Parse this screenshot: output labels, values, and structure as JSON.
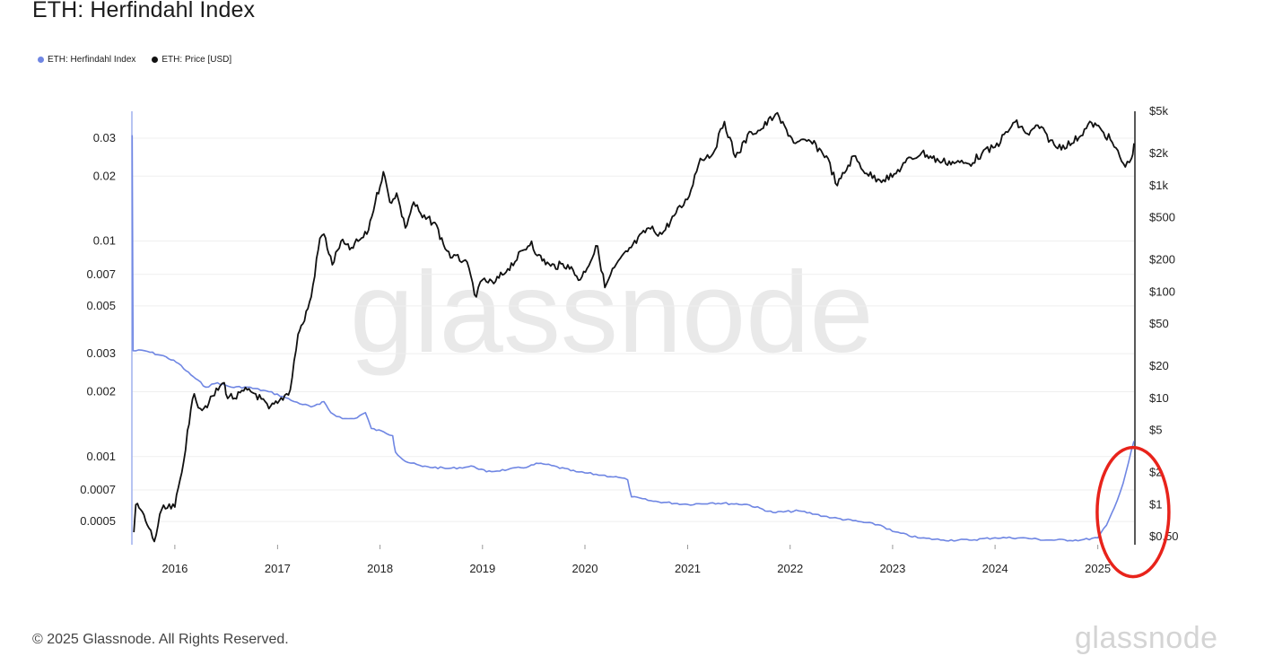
{
  "header": {
    "title": "ETH: Herfindahl Index"
  },
  "legend": [
    {
      "label": "ETH: Herfindahl Index",
      "color": "#6f86e3"
    },
    {
      "label": "ETH: Price [USD]",
      "color": "#111111"
    }
  ],
  "watermark": "glassnode",
  "footer": {
    "copyright": "© 2025 Glassnode. All Rights Reserved.",
    "logo": "glassnode"
  },
  "annotation": {
    "type": "ellipse",
    "color": "#e8231b",
    "meaning": "highlighted recent rise"
  },
  "chart_data": {
    "type": "line",
    "title": "ETH: Herfindahl Index",
    "x_axis": {
      "type": "date",
      "range": [
        "2015-08-01",
        "2025-05-10"
      ],
      "tick_labels": [
        "2016",
        "2017",
        "2018",
        "2019",
        "2020",
        "2021",
        "2022",
        "2023",
        "2024",
        "2025"
      ]
    },
    "y_axis_left": {
      "scale": "log",
      "range": [
        0.00039,
        0.04
      ],
      "tick_values": [
        0.03,
        0.02,
        0.01,
        0.007,
        0.005,
        0.003,
        0.002,
        0.001,
        0.0007,
        0.0005
      ],
      "tick_labels": [
        "0.03",
        "0.02",
        "0.01",
        "0.007",
        "0.005",
        "0.003",
        "0.002",
        "0.001",
        "0.0007",
        "0.0005"
      ]
    },
    "y_axis_right": {
      "scale": "log",
      "range": [
        0.42,
        5000
      ],
      "tick_values": [
        5000,
        2000,
        1000,
        500,
        200,
        100,
        50,
        20,
        10,
        5,
        2,
        1,
        0.5
      ],
      "tick_labels": [
        "$5k",
        "$2k",
        "$1k",
        "$500",
        "$200",
        "$100",
        "$50",
        "$20",
        "$10",
        "$5",
        "$2",
        "$1",
        "$0.50"
      ]
    },
    "grid": "horizontal",
    "legend_position": "top-left",
    "series": [
      {
        "name": "ETH: Herfindahl Index",
        "axis": "left",
        "color": "#6f86e3",
        "points": [
          [
            "2015-08-02",
            0.031
          ],
          [
            "2015-08-05",
            0.0031
          ],
          [
            "2015-09-15",
            0.0031
          ],
          [
            "2015-12-01",
            0.0029
          ],
          [
            "2016-01-15",
            0.0027
          ],
          [
            "2016-02-10",
            0.0025
          ],
          [
            "2016-03-15",
            0.0023
          ],
          [
            "2016-04-20",
            0.0021
          ],
          [
            "2016-06-01",
            0.0022
          ],
          [
            "2016-07-20",
            0.0021
          ],
          [
            "2016-09-15",
            0.0021
          ],
          [
            "2016-12-01",
            0.002
          ],
          [
            "2017-01-20",
            0.0019
          ],
          [
            "2017-03-01",
            0.0018
          ],
          [
            "2017-05-01",
            0.0017
          ],
          [
            "2017-06-01",
            0.00175
          ],
          [
            "2017-06-15",
            0.0018
          ],
          [
            "2017-07-10",
            0.0016
          ],
          [
            "2017-08-20",
            0.0015
          ],
          [
            "2017-10-01",
            0.0015
          ],
          [
            "2017-11-10",
            0.0016
          ],
          [
            "2017-12-01",
            0.00135
          ],
          [
            "2018-01-15",
            0.0013
          ],
          [
            "2018-02-15",
            0.00125
          ],
          [
            "2018-02-25",
            0.00105
          ],
          [
            "2018-04-01",
            0.00095
          ],
          [
            "2018-06-01",
            0.0009
          ],
          [
            "2018-09-01",
            0.00088
          ],
          [
            "2018-12-01",
            0.0009
          ],
          [
            "2019-01-15",
            0.00085
          ],
          [
            "2019-04-01",
            0.00087
          ],
          [
            "2019-06-15",
            0.0009
          ],
          [
            "2019-07-20",
            0.00093
          ],
          [
            "2019-08-15",
            0.00092
          ],
          [
            "2019-12-01",
            0.00085
          ],
          [
            "2020-03-01",
            0.00082
          ],
          [
            "2020-05-01",
            0.0008
          ],
          [
            "2020-06-01",
            0.00078
          ],
          [
            "2020-06-15",
            0.00065
          ],
          [
            "2020-09-01",
            0.00062
          ],
          [
            "2021-01-01",
            0.0006
          ],
          [
            "2021-04-01",
            0.00061
          ],
          [
            "2021-08-01",
            0.0006
          ],
          [
            "2021-11-01",
            0.00055
          ],
          [
            "2022-02-01",
            0.00056
          ],
          [
            "2022-04-01",
            0.00054
          ],
          [
            "2022-06-01",
            0.00052
          ],
          [
            "2022-09-01",
            0.0005
          ],
          [
            "2022-11-20",
            0.00048
          ],
          [
            "2023-01-01",
            0.00045
          ],
          [
            "2023-04-01",
            0.00042
          ],
          [
            "2023-07-01",
            0.00041
          ],
          [
            "2023-10-01",
            0.00041
          ],
          [
            "2024-01-01",
            0.00042
          ],
          [
            "2024-04-01",
            0.00042
          ],
          [
            "2024-07-01",
            0.00041
          ],
          [
            "2024-11-01",
            0.00041
          ],
          [
            "2025-01-01",
            0.00042
          ],
          [
            "2025-02-01",
            0.00048
          ],
          [
            "2025-03-01",
            0.00058
          ],
          [
            "2025-04-01",
            0.00075
          ],
          [
            "2025-05-10",
            0.00118
          ]
        ]
      },
      {
        "name": "ETH: Price [USD]",
        "axis": "right",
        "color": "#111111",
        "points": [
          [
            "2015-08-08",
            0.55
          ],
          [
            "2015-08-15",
            1.0
          ],
          [
            "2015-09-01",
            0.9
          ],
          [
            "2015-10-01",
            0.6
          ],
          [
            "2015-10-20",
            0.45
          ],
          [
            "2015-11-15",
            0.9
          ],
          [
            "2016-01-01",
            0.95
          ],
          [
            "2016-02-01",
            2.5
          ],
          [
            "2016-02-15",
            5.0
          ],
          [
            "2016-03-10",
            11
          ],
          [
            "2016-04-01",
            8
          ],
          [
            "2016-05-01",
            9
          ],
          [
            "2016-06-10",
            13
          ],
          [
            "2016-06-25",
            14
          ],
          [
            "2016-07-01",
            11
          ],
          [
            "2016-08-01",
            10
          ],
          [
            "2016-09-15",
            12
          ],
          [
            "2016-10-15",
            11
          ],
          [
            "2016-12-01",
            8
          ],
          [
            "2017-01-01",
            9
          ],
          [
            "2017-02-15",
            12
          ],
          [
            "2017-03-15",
            40
          ],
          [
            "2017-04-01",
            50
          ],
          [
            "2017-05-01",
            90
          ],
          [
            "2017-06-01",
            320
          ],
          [
            "2017-06-15",
            350
          ],
          [
            "2017-07-15",
            180
          ],
          [
            "2017-08-15",
            300
          ],
          [
            "2017-09-15",
            250
          ],
          [
            "2017-10-15",
            300
          ],
          [
            "2017-11-15",
            350
          ],
          [
            "2017-12-15",
            700
          ],
          [
            "2018-01-13",
            1350
          ],
          [
            "2018-02-05",
            700
          ],
          [
            "2018-03-01",
            850
          ],
          [
            "2018-04-01",
            400
          ],
          [
            "2018-05-01",
            700
          ],
          [
            "2018-06-01",
            500
          ],
          [
            "2018-07-15",
            450
          ],
          [
            "2018-08-15",
            280
          ],
          [
            "2018-09-15",
            210
          ],
          [
            "2018-11-01",
            200
          ],
          [
            "2018-12-10",
            90
          ],
          [
            "2019-01-01",
            130
          ],
          [
            "2019-02-10",
            120
          ],
          [
            "2019-04-01",
            165
          ],
          [
            "2019-06-25",
            300
          ],
          [
            "2019-07-15",
            220
          ],
          [
            "2019-09-01",
            175
          ],
          [
            "2019-11-01",
            180
          ],
          [
            "2019-12-15",
            130
          ],
          [
            "2020-02-15",
            270
          ],
          [
            "2020-03-12",
            110
          ],
          [
            "2020-04-15",
            170
          ],
          [
            "2020-06-01",
            240
          ],
          [
            "2020-08-15",
            400
          ],
          [
            "2020-10-01",
            350
          ],
          [
            "2020-11-20",
            550
          ],
          [
            "2020-12-31",
            740
          ],
          [
            "2021-02-15",
            1800
          ],
          [
            "2021-04-01",
            2000
          ],
          [
            "2021-05-12",
            4000
          ],
          [
            "2021-06-20",
            1850
          ],
          [
            "2021-08-15",
            3200
          ],
          [
            "2021-09-15",
            3300
          ],
          [
            "2021-11-10",
            4700
          ],
          [
            "2022-01-20",
            2500
          ],
          [
            "2022-03-15",
            2600
          ],
          [
            "2022-05-10",
            1900
          ],
          [
            "2022-06-18",
            1000
          ],
          [
            "2022-08-15",
            1900
          ],
          [
            "2022-10-01",
            1300
          ],
          [
            "2022-11-10",
            1150
          ],
          [
            "2022-12-31",
            1200
          ],
          [
            "2023-02-15",
            1650
          ],
          [
            "2023-04-15",
            2050
          ],
          [
            "2023-06-15",
            1700
          ],
          [
            "2023-08-15",
            1650
          ],
          [
            "2023-10-01",
            1600
          ],
          [
            "2023-11-15",
            2000
          ],
          [
            "2024-01-01",
            2300
          ],
          [
            "2024-03-12",
            3950
          ],
          [
            "2024-05-01",
            3000
          ],
          [
            "2024-06-01",
            3700
          ],
          [
            "2024-08-05",
            2300
          ],
          [
            "2024-10-01",
            2500
          ],
          [
            "2024-12-10",
            3900
          ],
          [
            "2025-01-15",
            3300
          ],
          [
            "2025-02-15",
            2700
          ],
          [
            "2025-04-09",
            1500
          ],
          [
            "2025-05-01",
            1800
          ],
          [
            "2025-05-10",
            2500
          ]
        ]
      }
    ]
  }
}
